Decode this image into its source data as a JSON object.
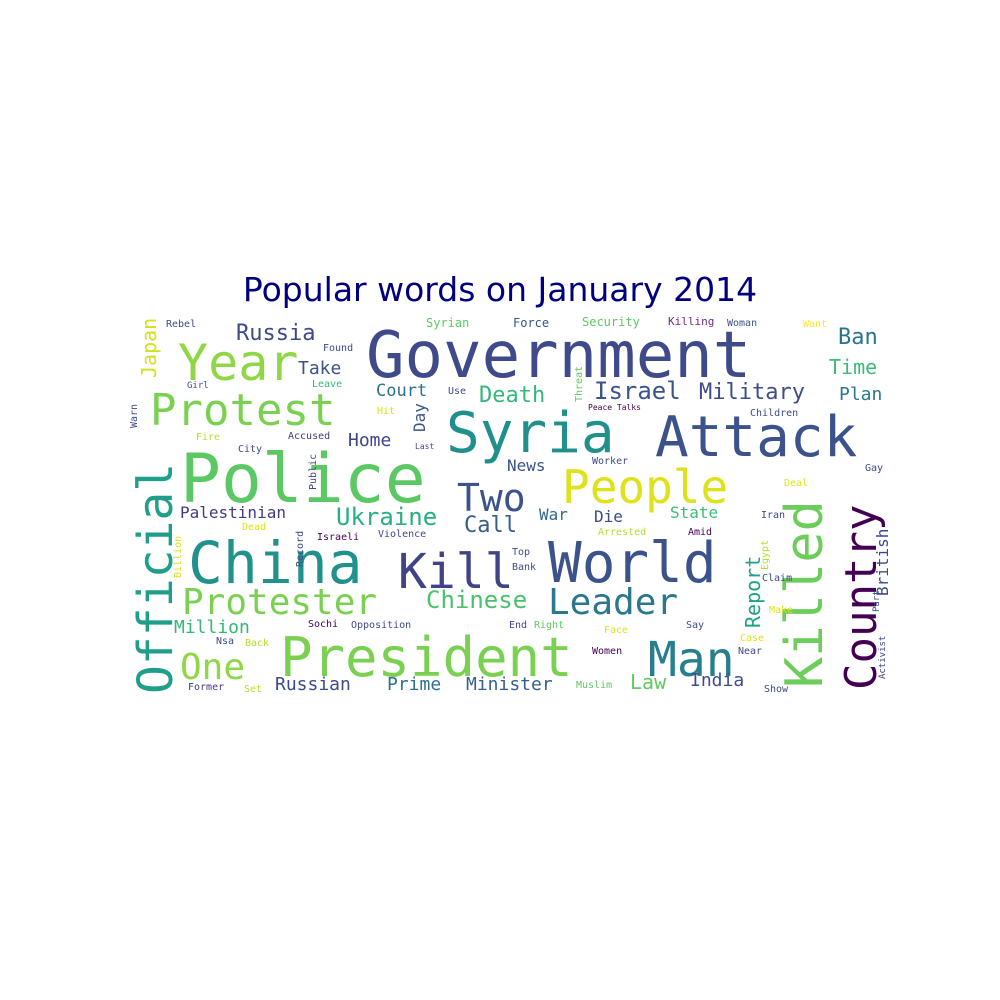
{
  "chart_data": {
    "type": "wordcloud",
    "title": "Popular words on January 2014",
    "words": [
      {
        "text": "Government",
        "rotated": false,
        "color": "#3f4a8a"
      },
      {
        "text": "Police",
        "rotated": false,
        "color": "#5cc863"
      },
      {
        "text": "Syria",
        "rotated": false,
        "color": "#21908d"
      },
      {
        "text": "Attack",
        "rotated": false,
        "color": "#3b528b"
      },
      {
        "text": "China",
        "rotated": false,
        "color": "#21918c"
      },
      {
        "text": "World",
        "rotated": false,
        "color": "#3b528b"
      },
      {
        "text": "President",
        "rotated": false,
        "color": "#7ad151"
      },
      {
        "text": "Official",
        "rotated": true,
        "color": "#1f9e89"
      },
      {
        "text": "Killed",
        "rotated": true,
        "color": "#6ccd5a"
      },
      {
        "text": "Country",
        "rotated": true,
        "color": "#440154"
      },
      {
        "text": "People",
        "rotated": false,
        "color": "#dde318"
      },
      {
        "text": "Protest",
        "rotated": false,
        "color": "#7ad151"
      },
      {
        "text": "Year",
        "rotated": false,
        "color": "#8fd744"
      },
      {
        "text": "Kill",
        "rotated": false,
        "color": "#404387"
      },
      {
        "text": "Man",
        "rotated": false,
        "color": "#277f8e"
      },
      {
        "text": "Protester",
        "rotated": false,
        "color": "#7ad151"
      },
      {
        "text": "Leader",
        "rotated": false,
        "color": "#2a788e"
      },
      {
        "text": "Two",
        "rotated": false,
        "color": "#3b528b"
      },
      {
        "text": "One",
        "rotated": false,
        "color": "#8fd744"
      },
      {
        "text": "Ukraine",
        "rotated": false,
        "color": "#29af7f"
      },
      {
        "text": "Chinese",
        "rotated": false,
        "color": "#4ac16d"
      },
      {
        "text": "Military",
        "rotated": false,
        "color": "#3e4c8a"
      },
      {
        "text": "Israel",
        "rotated": false,
        "color": "#3a548c"
      },
      {
        "text": "Death",
        "rotated": false,
        "color": "#35b779"
      },
      {
        "text": "Russia",
        "rotated": false,
        "color": "#3e4989"
      },
      {
        "text": "Ban",
        "rotated": false,
        "color": "#2c728e"
      },
      {
        "text": "Time",
        "rotated": false,
        "color": "#3cbb75"
      },
      {
        "text": "Call",
        "rotated": false,
        "color": "#365d8d"
      },
      {
        "text": "Plan",
        "rotated": false,
        "color": "#2a788e"
      },
      {
        "text": "Japan",
        "rotated": true,
        "color": "#d2e21b"
      },
      {
        "text": "Report",
        "rotated": true,
        "color": "#1fa188"
      },
      {
        "text": "British",
        "rotated": true,
        "color": "#3e4a89"
      },
      {
        "text": "Law",
        "rotated": false,
        "color": "#5ec962"
      },
      {
        "text": "India",
        "rotated": false,
        "color": "#3e4c8a"
      },
      {
        "text": "Take",
        "rotated": false,
        "color": "#3b528b"
      },
      {
        "text": "Court",
        "rotated": false,
        "color": "#2d708e"
      },
      {
        "text": "Home",
        "rotated": false,
        "color": "#414487"
      },
      {
        "text": "Day",
        "rotated": true,
        "color": "#3b528b"
      },
      {
        "text": "Million",
        "rotated": false,
        "color": "#35b779"
      },
      {
        "text": "Palestinian",
        "rotated": false,
        "color": "#443983"
      },
      {
        "text": "Russian",
        "rotated": false,
        "color": "#3e4989"
      },
      {
        "text": "Prime",
        "rotated": false,
        "color": "#2c728e"
      },
      {
        "text": "Minister",
        "rotated": false,
        "color": "#355f8d"
      },
      {
        "text": "State",
        "rotated": false,
        "color": "#3dbc74"
      },
      {
        "text": "Die",
        "rotated": false,
        "color": "#3f4788"
      },
      {
        "text": "War",
        "rotated": false,
        "color": "#31688e"
      },
      {
        "text": "News",
        "rotated": false,
        "color": "#3b528b"
      },
      {
        "text": "Syrian",
        "rotated": false,
        "color": "#5ec962"
      },
      {
        "text": "Force",
        "rotated": false,
        "color": "#3b528b"
      },
      {
        "text": "Security",
        "rotated": false,
        "color": "#5ec962"
      },
      {
        "text": "Killing",
        "rotated": false,
        "color": "#6a2c83"
      },
      {
        "text": "Woman",
        "rotated": false,
        "color": "#3b528b"
      },
      {
        "text": "Want",
        "rotated": false,
        "color": "#fde725"
      },
      {
        "text": "Rebel",
        "rotated": false,
        "color": "#3e4989"
      },
      {
        "text": "Found",
        "rotated": false,
        "color": "#3e4989"
      },
      {
        "text": "Leave",
        "rotated": false,
        "color": "#35b779"
      },
      {
        "text": "Girl",
        "rotated": false,
        "color": "#3e4989"
      },
      {
        "text": "Use",
        "rotated": false,
        "color": "#3e4989"
      },
      {
        "text": "Threat",
        "rotated": true,
        "color": "#5ec962"
      },
      {
        "text": "Peace Talks",
        "rotated": false,
        "color": "#440154"
      },
      {
        "text": "Children",
        "rotated": false,
        "color": "#3e4989"
      },
      {
        "text": "Warn",
        "rotated": true,
        "color": "#3e4989"
      },
      {
        "text": "Hit",
        "rotated": false,
        "color": "#dde318"
      },
      {
        "text": "Fire",
        "rotated": false,
        "color": "#b5de2b"
      },
      {
        "text": "City",
        "rotated": false,
        "color": "#3e4989"
      },
      {
        "text": "Accused",
        "rotated": false,
        "color": "#443983"
      },
      {
        "text": "Public",
        "rotated": true,
        "color": "#3e4989"
      },
      {
        "text": "Last",
        "rotated": false,
        "color": "#3e4989"
      },
      {
        "text": "Worker",
        "rotated": false,
        "color": "#3e4989"
      },
      {
        "text": "Gay",
        "rotated": false,
        "color": "#3e4989"
      },
      {
        "text": "Deal",
        "rotated": false,
        "color": "#dde318"
      },
      {
        "text": "Iran",
        "rotated": false,
        "color": "#3e4989"
      },
      {
        "text": "Dead",
        "rotated": false,
        "color": "#dde318"
      },
      {
        "text": "Israeli",
        "rotated": false,
        "color": "#440154"
      },
      {
        "text": "Record",
        "rotated": true,
        "color": "#3e4989"
      },
      {
        "text": "Violence",
        "rotated": false,
        "color": "#3e4989"
      },
      {
        "text": "Arrested",
        "rotated": false,
        "color": "#b5de2b"
      },
      {
        "text": "Amid",
        "rotated": false,
        "color": "#440154"
      },
      {
        "text": "Egypt",
        "rotated": true,
        "color": "#b5de2b"
      },
      {
        "text": "Billion",
        "rotated": true,
        "color": "#dde318"
      },
      {
        "text": "Top",
        "rotated": false,
        "color": "#3e4989"
      },
      {
        "text": "Bank",
        "rotated": false,
        "color": "#3e4989"
      },
      {
        "text": "Claim",
        "rotated": false,
        "color": "#3e4989"
      },
      {
        "text": "Part",
        "rotated": true,
        "color": "#3e4989"
      },
      {
        "text": "Make",
        "rotated": false,
        "color": "#dde318"
      },
      {
        "text": "Sochi",
        "rotated": false,
        "color": "#440154"
      },
      {
        "text": "Opposition",
        "rotated": false,
        "color": "#3e4989"
      },
      {
        "text": "End",
        "rotated": false,
        "color": "#3e4989"
      },
      {
        "text": "Right",
        "rotated": false,
        "color": "#5ec962"
      },
      {
        "text": "Say",
        "rotated": false,
        "color": "#3e4989"
      },
      {
        "text": "Case",
        "rotated": false,
        "color": "#dde318"
      },
      {
        "text": "Near",
        "rotated": false,
        "color": "#3e4989"
      },
      {
        "text": "Nsa",
        "rotated": false,
        "color": "#3e4989"
      },
      {
        "text": "Back",
        "rotated": false,
        "color": "#b5de2b"
      },
      {
        "text": "Face",
        "rotated": false,
        "color": "#dde318"
      },
      {
        "text": "Women",
        "rotated": false,
        "color": "#440154"
      },
      {
        "text": "Activist",
        "rotated": true,
        "color": "#3e4989"
      },
      {
        "text": "Former",
        "rotated": false,
        "color": "#443983"
      },
      {
        "text": "Set",
        "rotated": false,
        "color": "#b5de2b"
      },
      {
        "text": "Muslim",
        "rotated": false,
        "color": "#5ec962"
      },
      {
        "text": "Show",
        "rotated": false,
        "color": "#3e4989"
      }
    ]
  }
}
